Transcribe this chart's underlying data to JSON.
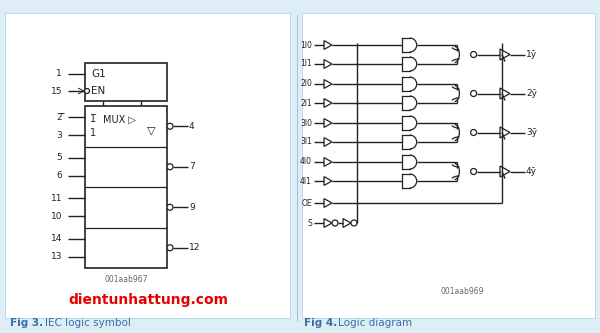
{
  "bg_color": "#ddeef6",
  "line_color": "#222222",
  "blue_color": "#3a6ea5",
  "red_color": "#e80000",
  "fig_width": 6.0,
  "fig_height": 3.33,
  "title_left": "Fig 3.",
  "title_left_label": "IEC logic symbol",
  "title_right": "Fig 4.",
  "title_right_label": "Logic diagram",
  "watermark": "dientunhattung.com",
  "code_left": "001aab967",
  "code_right": "001aab969"
}
